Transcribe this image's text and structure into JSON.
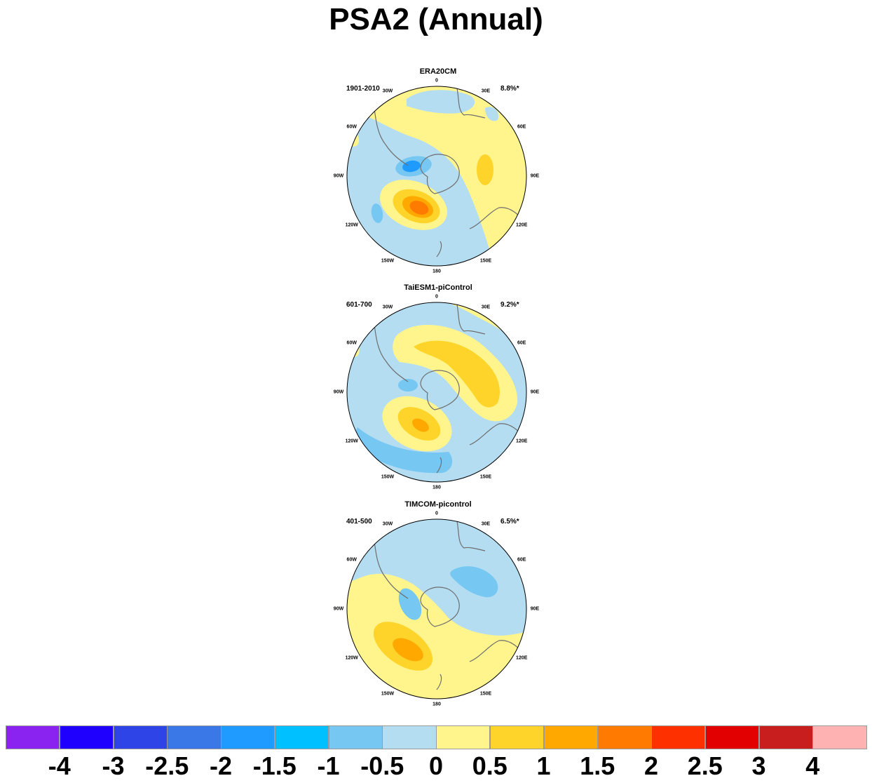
{
  "title": "PSA2 (Annual)",
  "panels": [
    {
      "name": "ERA20CM",
      "period": "1901-2010",
      "variance": "8.8%*"
    },
    {
      "name": "TaiESM1-piControl",
      "period": "601-700",
      "variance": "9.2%*"
    },
    {
      "name": "TIMCOM-picontrol",
      "period": "401-500",
      "variance": "6.5%*"
    }
  ],
  "longitude_labels": {
    "lon_0": "0",
    "lon_30e": "30E",
    "lon_60e": "60E",
    "lon_90e": "90E",
    "lon_120e": "120E",
    "lon_150e": "150E",
    "lon_180": "180",
    "lon_150w": "150W",
    "lon_120w": "120W",
    "lon_90w": "90W",
    "lon_60w": "60W",
    "lon_30w": "30W"
  },
  "colorbar": {
    "colors": [
      "#8a22f0",
      "#1f00ff",
      "#2e44e6",
      "#3a78e8",
      "#1f9bff",
      "#00c0ff",
      "#76c7f2",
      "#b4ddf2",
      "#fff58c",
      "#ffd42a",
      "#ffa900",
      "#ff7a00",
      "#ff3000",
      "#e20000",
      "#c91e1e",
      "#ffb2b2"
    ],
    "ticks": [
      "-4",
      "-3",
      "-2.5",
      "-2",
      "-1.5",
      "-1",
      "-0.5",
      "0",
      "0.5",
      "1",
      "1.5",
      "2",
      "2.5",
      "3",
      "4"
    ]
  }
}
